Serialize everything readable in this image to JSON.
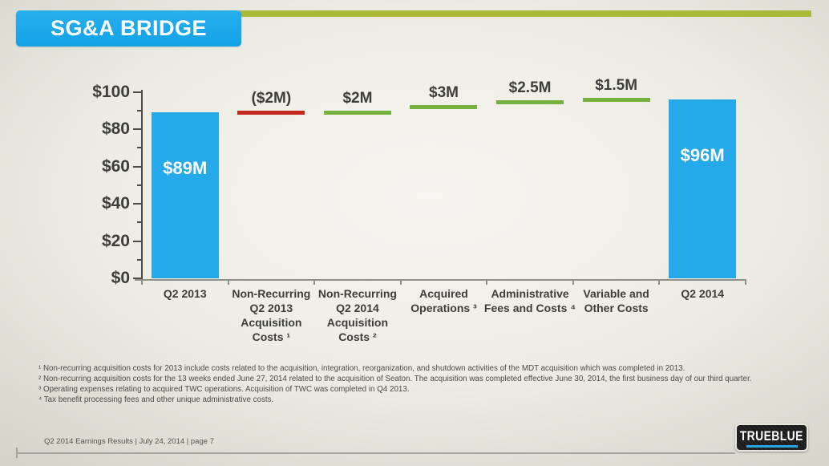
{
  "slide": {
    "title": "SG&A BRIDGE",
    "footer_text": "Q2 2014 Earnings Results | July 24, 2014  | page 7",
    "logo_text": "TRUEBLUE"
  },
  "chart_data": {
    "type": "bar",
    "subtype": "waterfall_bridge",
    "title": "SG&A BRIDGE",
    "categories": [
      "Q2 2013",
      "Non-Recurring Q2 2013 Acquisition Costs ¹",
      "Non-Recurring Q2 2014 Acquisition Costs ²",
      "Acquired Operations ³",
      "Administrative Fees and Costs ⁴",
      "Variable and Other Costs",
      "Q2 2014"
    ],
    "categories_lines": [
      "Q2 2013",
      "Non-Recurring\nQ2 2013\nAcquisition\nCosts ¹",
      "Non-Recurring\nQ2 2014\nAcquisition\nCosts ²",
      "Acquired\nOperations ³",
      "Administrative\nFees and Costs ⁴",
      "Variable and\nOther Costs",
      "Q2 2014"
    ],
    "values": [
      89,
      -2,
      2,
      3,
      2.5,
      1.5,
      96
    ],
    "labels": [
      "$89M",
      "($2M)",
      "$2M",
      "$3M",
      "$2.5M",
      "$1.5M",
      "$96M"
    ],
    "bar_indices": [
      0,
      6
    ],
    "ylim": [
      0,
      100
    ],
    "ytick_values": [
      0,
      20,
      40,
      60,
      80,
      100
    ],
    "ytick_labels": [
      "$0",
      "$20",
      "$40",
      "$60",
      "$80",
      "$100"
    ],
    "minor_tick_values": [
      10,
      30,
      50,
      70,
      90
    ],
    "legend": "none",
    "grid": "off",
    "colors": {
      "total_bar": "#25a9ea",
      "increase": "#74b13f",
      "decrease": "#c32a1d",
      "accent_line": "#a9ba38",
      "title_box": "#18a8ea",
      "logo_underline": "#29a8df"
    }
  },
  "footnotes": [
    "¹ Non-recurring acquisition costs for 2013 include costs related to the acquisition, integration, reorganization, and shutdown activities of the MDT acquisition which was completed in 2013.",
    "² Non-recurring acquisition costs for the 13 weeks ended June 27, 2014 related to the acquisition of Seaton.  The acquisition was completed effective June 30, 2014, the first business day of our third quarter.",
    "³ Operating expenses relating to acquired TWC operations. Acquisition of TWC was completed in Q4 2013.",
    "⁴ Tax benefit processing fees and other unique administrative costs."
  ]
}
